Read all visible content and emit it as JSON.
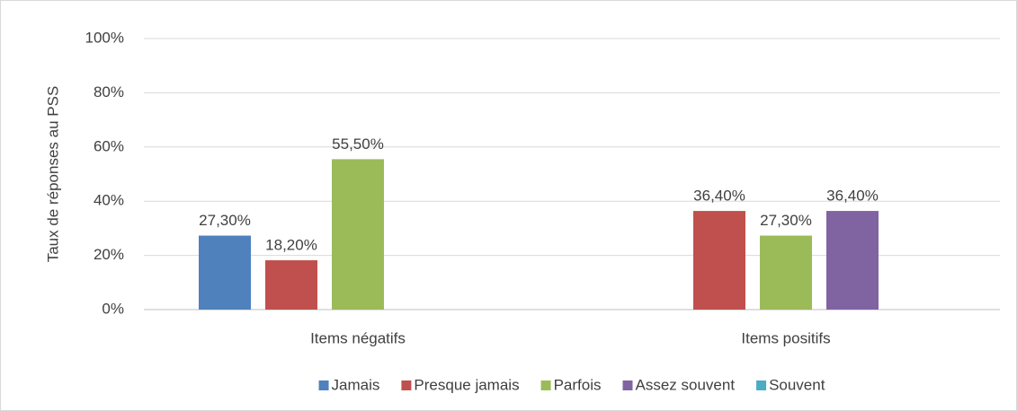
{
  "chart_data": {
    "type": "bar",
    "ylabel": "Taux de réponses au PSS",
    "categories": [
      "Items négatifs",
      "Items positifs"
    ],
    "series": [
      {
        "name": "Jamais",
        "color": "#4f81bd",
        "values": [
          27.3,
          null
        ],
        "value_labels": [
          "27,30%",
          null
        ]
      },
      {
        "name": "Presque jamais",
        "color": "#c0504d",
        "values": [
          18.2,
          36.4
        ],
        "value_labels": [
          "18,20%",
          "36,40%"
        ]
      },
      {
        "name": "Parfois",
        "color": "#9bbb59",
        "values": [
          55.5,
          27.3
        ],
        "value_labels": [
          "55,50%",
          "27,30%"
        ]
      },
      {
        "name": "Assez souvent",
        "color": "#8064a2",
        "values": [
          null,
          36.4
        ],
        "value_labels": [
          null,
          "36,40%"
        ]
      },
      {
        "name": "Souvent",
        "color": "#4bacc6",
        "values": [
          null,
          null
        ],
        "value_labels": [
          null,
          null
        ]
      }
    ],
    "ylim": [
      0,
      100
    ],
    "yticks": [
      {
        "value": 0,
        "label": "0%"
      },
      {
        "value": 20,
        "label": "20%"
      },
      {
        "value": 40,
        "label": "40%"
      },
      {
        "value": 60,
        "label": "60%"
      },
      {
        "value": 80,
        "label": "80%"
      },
      {
        "value": 100,
        "label": "100%"
      }
    ],
    "grid": true,
    "legend": "bottom"
  }
}
